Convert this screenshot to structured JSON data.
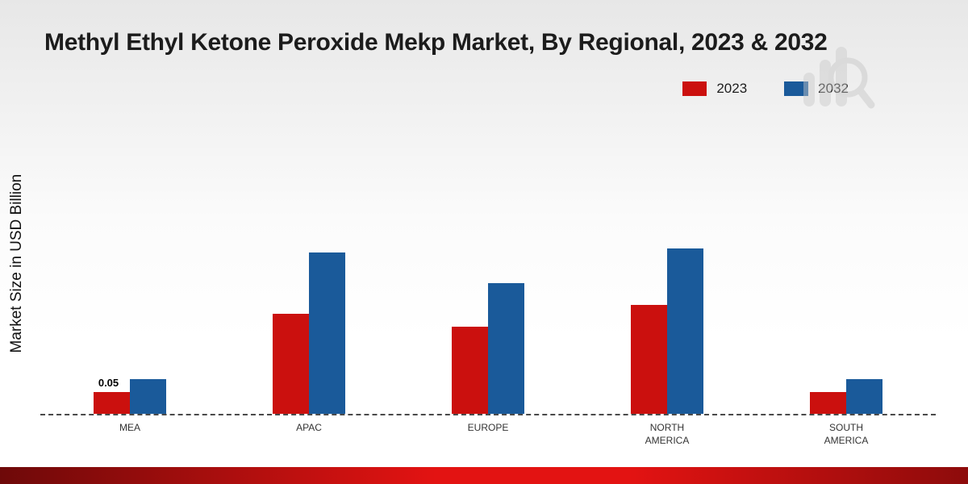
{
  "title": "Methyl Ethyl Ketone Peroxide Mekp Market, By Regional, 2023 & 2032",
  "ylabel": "Market Size in USD Billion",
  "watermark_icon": "bar-chart-magnifier-logo",
  "footer": {
    "gradient_left": "#6e0909",
    "gradient_mid": "#e31312",
    "gradient_right": "#8d0b0b"
  },
  "chart_data": {
    "type": "bar",
    "categories": [
      "MEA",
      "APAC",
      "EUROPE",
      "NORTH AMERICA",
      "SOUTH AMERICA"
    ],
    "series": [
      {
        "name": "2023",
        "color": "#cb100e",
        "values": [
          0.05,
          0.23,
          0.2,
          0.25,
          0.05
        ]
      },
      {
        "name": "2032",
        "color": "#1a5a9a",
        "values": [
          0.08,
          0.37,
          0.3,
          0.38,
          0.08
        ]
      }
    ],
    "annotations": [
      {
        "category_index": 0,
        "series_index": 0,
        "text": "0.05"
      }
    ],
    "title": "Methyl Ethyl Ketone Peroxide Mekp Market, By Regional, 2023 & 2032",
    "xlabel": "",
    "ylabel": "Market Size in USD Billion",
    "ylim": [
      0,
      0.4
    ],
    "grid": false,
    "baseline_style": "dashed",
    "legend_position": "top-right"
  }
}
